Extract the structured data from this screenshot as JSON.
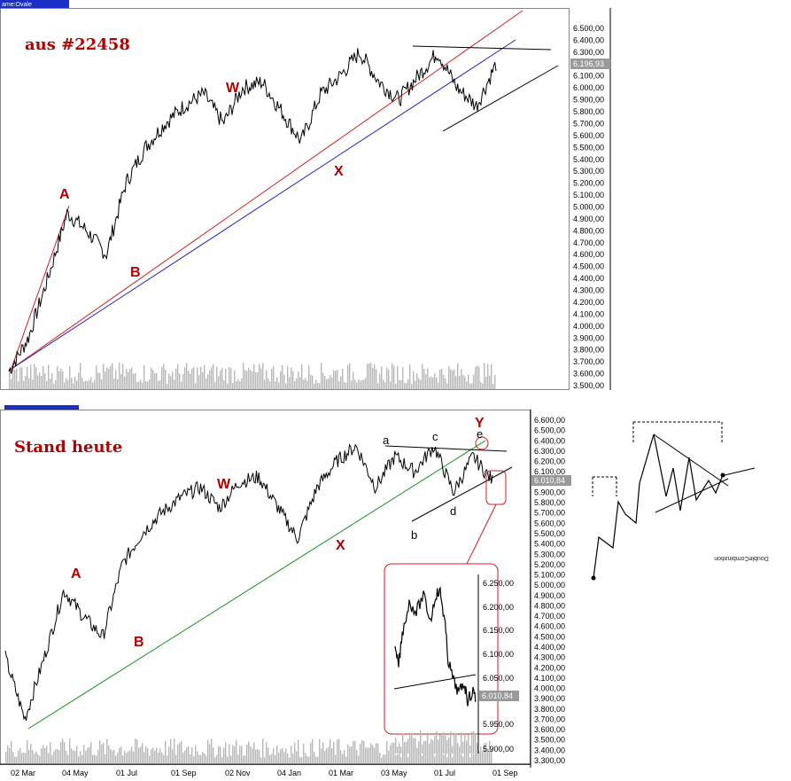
{
  "top_chart": {
    "tab_label": "ame:Ovale",
    "annotation": "aus #22458",
    "current_value": "6.196,93",
    "wave_labels": [
      "A",
      "B",
      "W",
      "X"
    ]
  },
  "bottom_chart": {
    "annotation": "Stand heute",
    "current_value": "6.010,84",
    "wave_labels_red": [
      "A",
      "B",
      "W",
      "X",
      "Y"
    ],
    "wave_labels_black": [
      "a",
      "b",
      "c",
      "d",
      "e"
    ],
    "x_tick_labels": [
      "02 Mar",
      "04 May",
      "01 Jul",
      "01 Sep",
      "02 Nov",
      "04 Jan",
      "01 Mar",
      "03 May",
      "01 Jul",
      "01 Sep"
    ]
  },
  "inset": {
    "current_value": "6.010,84",
    "y_tick_labels": [
      "6.250,00",
      "6.200,00",
      "6.150,00",
      "6.100,00",
      "6.050,00",
      "5.950,00",
      "5.900,00"
    ]
  },
  "diagram": {
    "title": "DoubleCombination"
  },
  "chart_data": [
    {
      "type": "line",
      "title": "",
      "xlabel": "",
      "ylabel": "",
      "ylim": [
        3500,
        6600
      ],
      "y_ticks": [
        "3.500,00",
        "3.600,00",
        "3.700,00",
        "3.800,00",
        "3.900,00",
        "4.000,00",
        "4.100,00",
        "4.200,00",
        "4.300,00",
        "4.400,00",
        "4.500,00",
        "4.600,00",
        "4.700,00",
        "4.800,00",
        "4.900,00",
        "5.000,00",
        "5.100,00",
        "5.200,00",
        "5.300,00",
        "5.400,00",
        "5.500,00",
        "5.600,00",
        "5.700,00",
        "5.800,00",
        "5.900,00",
        "6.000,00",
        "6.100,00",
        "6.200,00",
        "6.300,00",
        "6.400,00",
        "6.500,00"
      ],
      "x": [
        0,
        0.04,
        0.08,
        0.12,
        0.16,
        0.2,
        0.24,
        0.28,
        0.32,
        0.36,
        0.4,
        0.44,
        0.48,
        0.52,
        0.56,
        0.6,
        0.64,
        0.68,
        0.72,
        0.76,
        0.8,
        0.84,
        0.88,
        0.92,
        0.96,
        1.0
      ],
      "series": [
        {
          "values": [
            3620,
            3900,
            4400,
            4950,
            4800,
            4600,
            5200,
            5500,
            5700,
            5850,
            5950,
            5700,
            6000,
            6050,
            5800,
            5550,
            5950,
            6100,
            6300,
            6050,
            5900,
            6100,
            6300,
            6000,
            5850,
            6200
          ]
        }
      ]
    },
    {
      "type": "line",
      "title": "",
      "xlabel": "",
      "ylabel": "",
      "ylim": [
        3300,
        6600
      ],
      "x_ticks": [
        "02 Mar",
        "04 May",
        "01 Jul",
        "01 Sep",
        "02 Nov",
        "04 Jan",
        "01 Mar",
        "03 May",
        "01 Jul",
        "01 Sep"
      ],
      "y_ticks": [
        "3.300,00",
        "3.400,00",
        "3.500,00",
        "3.600,00",
        "3.700,00",
        "3.800,00",
        "3.900,00",
        "4.000,00",
        "4.100,00",
        "4.200,00",
        "4.300,00",
        "4.400,00",
        "4.500,00",
        "4.600,00",
        "4.700,00",
        "4.800,00",
        "4.900,00",
        "5.000,00",
        "5.100,00",
        "5.200,00",
        "5.300,00",
        "5.400,00",
        "5.500,00",
        "5.600,00",
        "5.700,00",
        "5.800,00",
        "5.900,00",
        "6.000,00",
        "6.100,00",
        "6.200,00",
        "6.300,00",
        "6.400,00",
        "6.500,00",
        "6.600,00"
      ],
      "x": [
        0,
        0.04,
        0.08,
        0.12,
        0.16,
        0.2,
        0.24,
        0.28,
        0.32,
        0.36,
        0.4,
        0.44,
        0.48,
        0.52,
        0.56,
        0.6,
        0.64,
        0.68,
        0.72,
        0.76,
        0.8,
        0.84,
        0.88,
        0.92,
        0.96,
        1.0
      ],
      "series": [
        {
          "values": [
            4300,
            3700,
            4300,
            4950,
            4700,
            4500,
            5200,
            5500,
            5700,
            5850,
            5950,
            5750,
            6000,
            6050,
            5750,
            5450,
            5950,
            6200,
            6350,
            5950,
            6250,
            6100,
            6350,
            5900,
            6250,
            6010
          ]
        }
      ]
    }
  ]
}
